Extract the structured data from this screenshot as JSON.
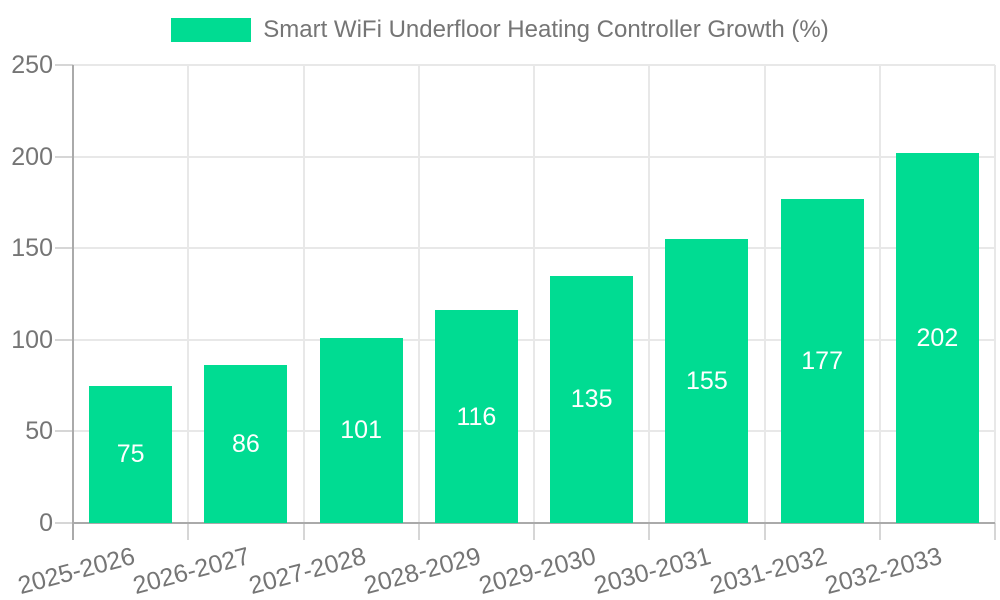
{
  "legend": {
    "label": "Smart WiFi Underfloor Heating Controller Growth (%)"
  },
  "colors": {
    "bar": "#00DC92",
    "bar_label": "#FFFFFF",
    "axis_line": "#AAAAAA",
    "grid_line": "#E8E8E8",
    "tick_mark": "#D6D6D6",
    "text": "#757575",
    "background": "#FFFFFF"
  },
  "chart_data": {
    "type": "bar",
    "title": "Smart WiFi Underfloor Heating Controller Growth (%)",
    "categories": [
      "2025-2026",
      "2026-2027",
      "2027-2028",
      "2028-2029",
      "2029-2030",
      "2030-2031",
      "2031-2032",
      "2032-2033"
    ],
    "values": [
      75,
      86,
      101,
      116,
      135,
      155,
      177,
      202
    ],
    "series": [
      {
        "name": "Smart WiFi Underfloor Heating Controller Growth (%)",
        "values": [
          75,
          86,
          101,
          116,
          135,
          155,
          177,
          202
        ]
      }
    ],
    "xlabel": "",
    "ylabel": "",
    "ylim": [
      0,
      250
    ],
    "yticks": [
      0,
      50,
      100,
      150,
      200,
      250
    ],
    "grid": true,
    "legend_position": "top",
    "value_labels_position": "inside-center",
    "x_tick_rotation_deg": -15
  }
}
